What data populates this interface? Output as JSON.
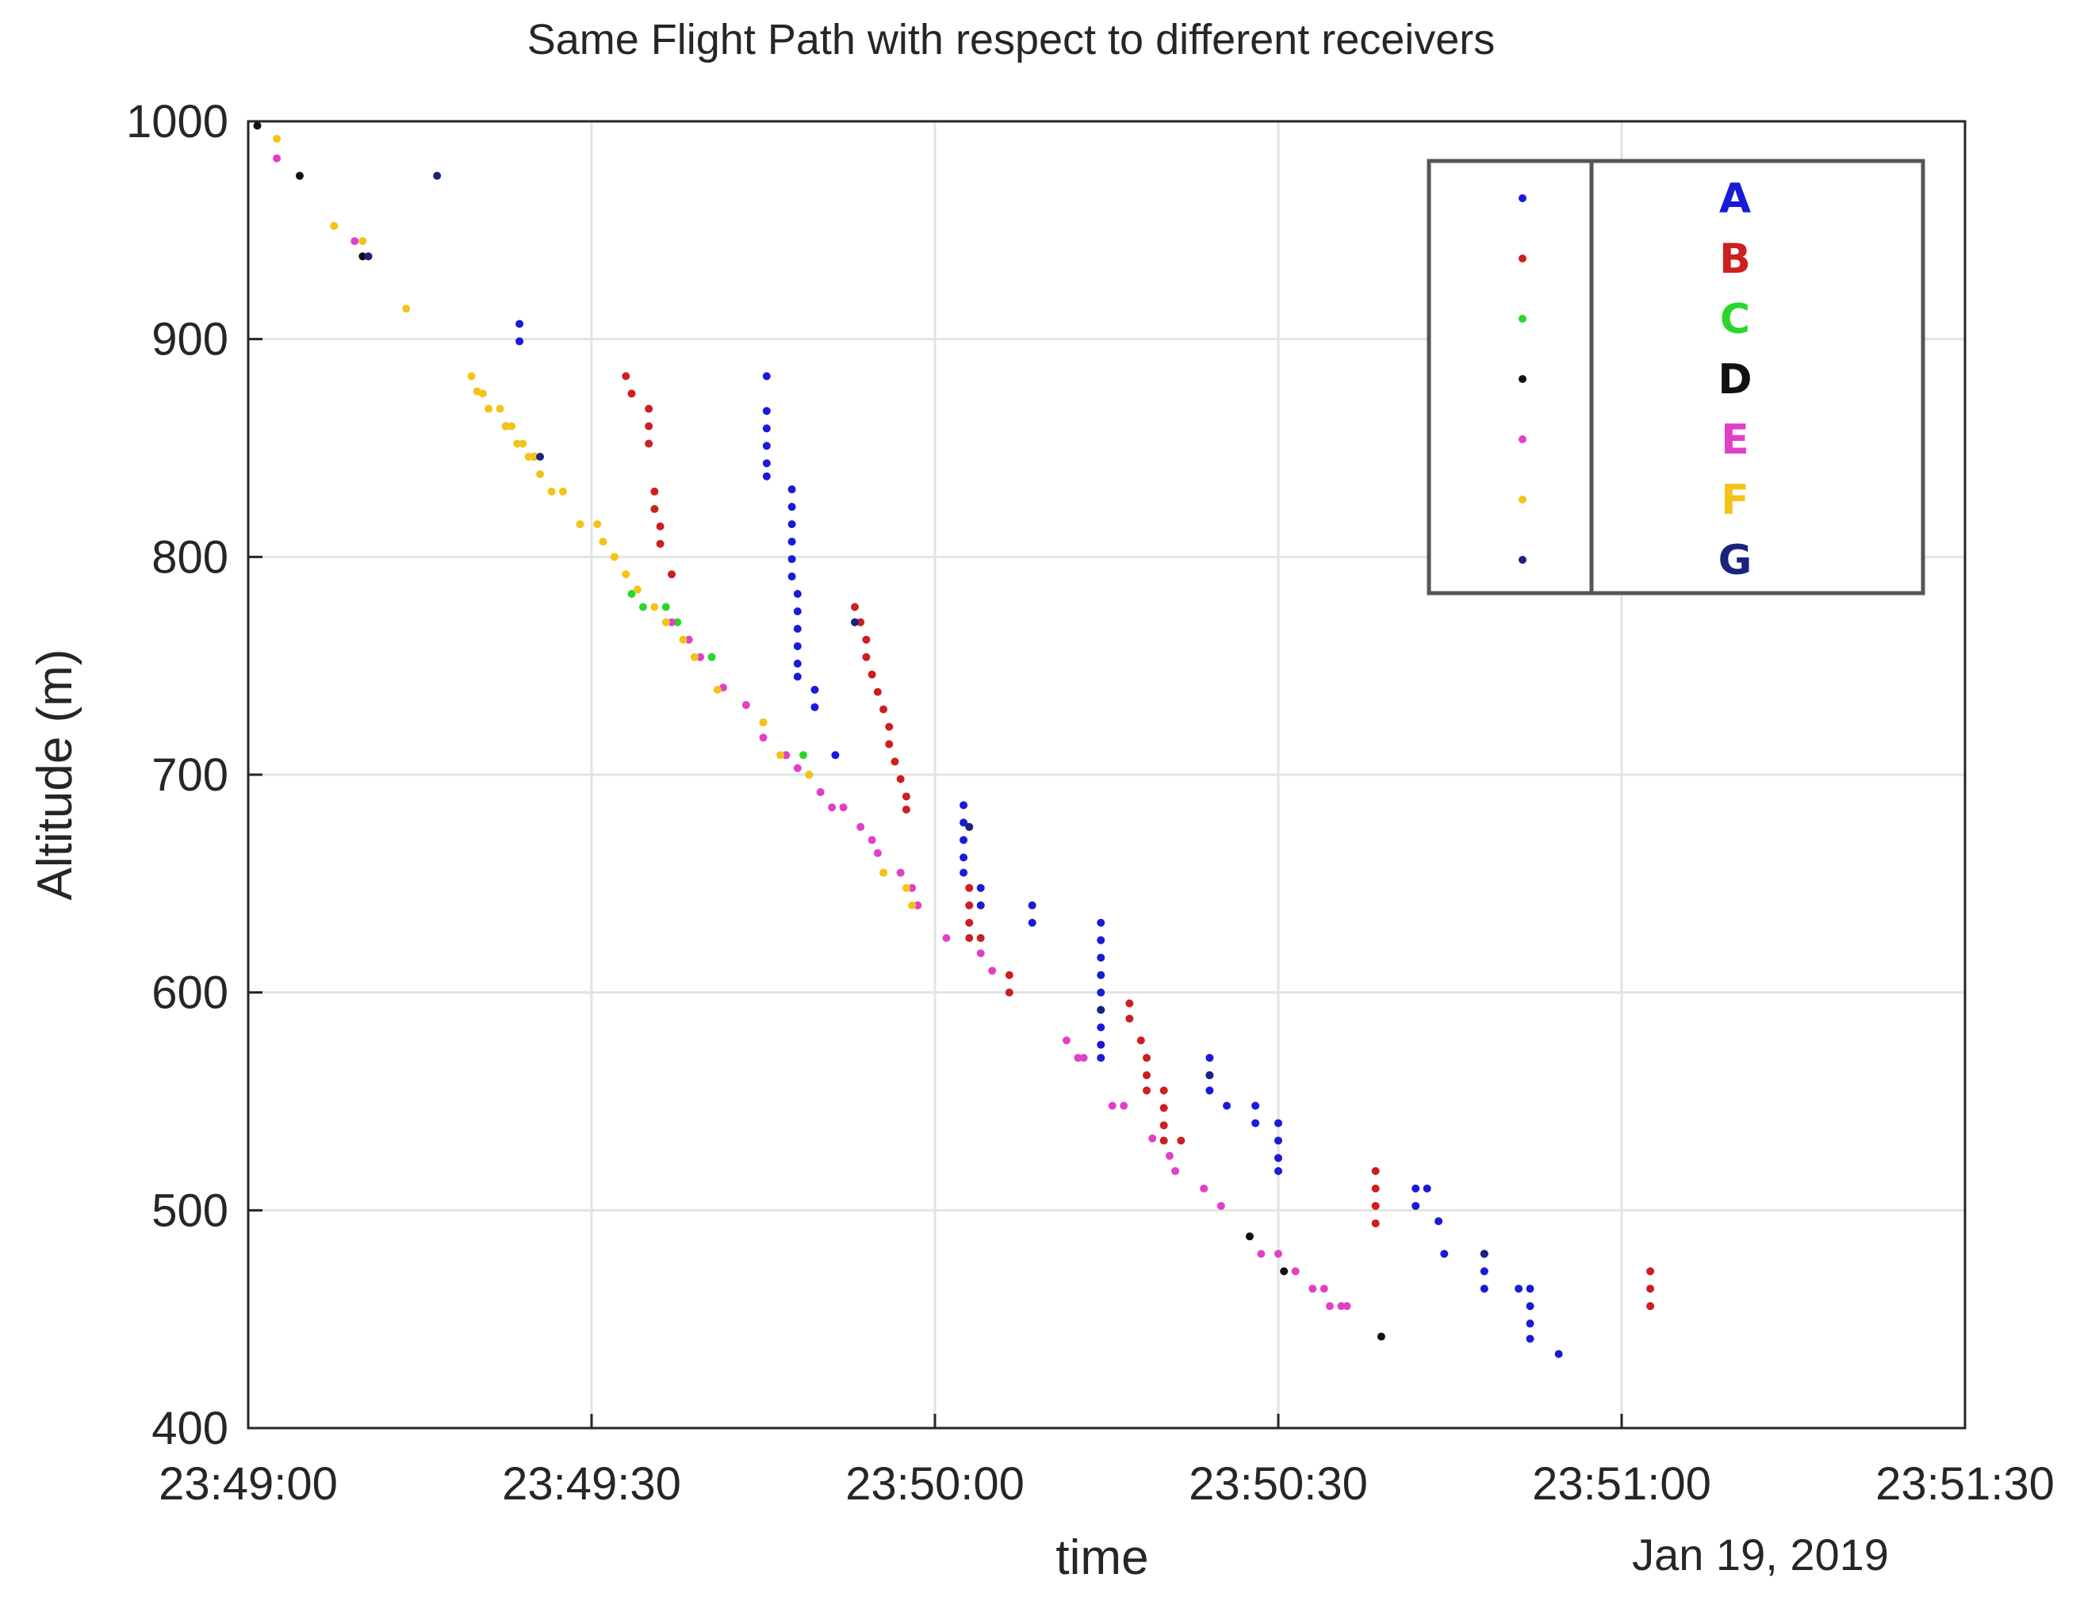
{
  "chart_data": {
    "type": "scatter",
    "title": "Same Flight Path with respect to different receivers",
    "xlabel": "time",
    "ylabel": "Altitude (m)",
    "date_label": "Jan 19, 2019",
    "x_unit": "seconds after 23:49:00",
    "xlim": [
      0,
      150
    ],
    "ylim": [
      400,
      1000
    ],
    "x_ticks": [
      0,
      30,
      60,
      90,
      120,
      150
    ],
    "x_tick_labels": [
      "23:49:00",
      "23:49:30",
      "23:50:00",
      "23:50:30",
      "23:51:00",
      "23:51:30"
    ],
    "y_ticks": [
      400,
      500,
      600,
      700,
      800,
      900,
      1000
    ],
    "y_tick_labels": [
      "400",
      "500",
      "600",
      "700",
      "800",
      "900",
      "1000"
    ],
    "grid": true,
    "legend_position": "top-right",
    "series": [
      {
        "name": "A",
        "color": "#1a1ad8",
        "points": [
          [
            23.7,
            907
          ],
          [
            23.7,
            899
          ],
          [
            45.3,
            883
          ],
          [
            45.3,
            867
          ],
          [
            45.3,
            859
          ],
          [
            45.3,
            851
          ],
          [
            45.3,
            843
          ],
          [
            45.3,
            837
          ],
          [
            47.5,
            831
          ],
          [
            47.5,
            823
          ],
          [
            47.5,
            815
          ],
          [
            47.5,
            807
          ],
          [
            47.5,
            799
          ],
          [
            47.5,
            791
          ],
          [
            48.0,
            783
          ],
          [
            48.0,
            775
          ],
          [
            48.0,
            767
          ],
          [
            48.0,
            759
          ],
          [
            48.0,
            751
          ],
          [
            48.0,
            745
          ],
          [
            49.5,
            739
          ],
          [
            49.5,
            731
          ],
          [
            51.3,
            709
          ],
          [
            62.5,
            686
          ],
          [
            62.5,
            678
          ],
          [
            62.5,
            670
          ],
          [
            62.5,
            662
          ],
          [
            62.5,
            655
          ],
          [
            64.0,
            648
          ],
          [
            64.0,
            640
          ],
          [
            68.5,
            640
          ],
          [
            68.5,
            632
          ],
          [
            74.5,
            632
          ],
          [
            74.5,
            624
          ],
          [
            74.5,
            616
          ],
          [
            74.5,
            608
          ],
          [
            74.5,
            600
          ],
          [
            74.5,
            592
          ],
          [
            74.5,
            584
          ],
          [
            74.5,
            576
          ],
          [
            74.5,
            570
          ],
          [
            84.0,
            570
          ],
          [
            84.0,
            562
          ],
          [
            84.0,
            555
          ],
          [
            85.5,
            548
          ],
          [
            88.0,
            548
          ],
          [
            88.0,
            540
          ],
          [
            90.0,
            540
          ],
          [
            90.0,
            532
          ],
          [
            90.0,
            524
          ],
          [
            90.0,
            518
          ],
          [
            102.0,
            510
          ],
          [
            102.0,
            502
          ],
          [
            103.0,
            510
          ],
          [
            104.0,
            495
          ],
          [
            104.5,
            480
          ],
          [
            108.0,
            480
          ],
          [
            108.0,
            472
          ],
          [
            108.0,
            464
          ],
          [
            111.0,
            464
          ],
          [
            112.0,
            464
          ],
          [
            112.0,
            456
          ],
          [
            112.0,
            448
          ],
          [
            112.0,
            441
          ],
          [
            114.5,
            434
          ]
        ]
      },
      {
        "name": "B",
        "color": "#cc1f1f",
        "points": [
          [
            33.0,
            883
          ],
          [
            33.5,
            875
          ],
          [
            35.0,
            868
          ],
          [
            35.0,
            860
          ],
          [
            35.0,
            852
          ],
          [
            35.5,
            830
          ],
          [
            35.5,
            822
          ],
          [
            36.0,
            814
          ],
          [
            36.0,
            806
          ],
          [
            37.0,
            792
          ],
          [
            53.0,
            777
          ],
          [
            53.5,
            770
          ],
          [
            54.0,
            762
          ],
          [
            54.0,
            754
          ],
          [
            54.5,
            746
          ],
          [
            55.0,
            738
          ],
          [
            55.5,
            730
          ],
          [
            56.0,
            722
          ],
          [
            56.0,
            714
          ],
          [
            56.5,
            706
          ],
          [
            57.0,
            698
          ],
          [
            57.5,
            690
          ],
          [
            57.5,
            684
          ],
          [
            63.0,
            648
          ],
          [
            63.0,
            640
          ],
          [
            63.0,
            632
          ],
          [
            63.0,
            625
          ],
          [
            64.0,
            625
          ],
          [
            66.5,
            608
          ],
          [
            66.5,
            600
          ],
          [
            77.0,
            595
          ],
          [
            77.0,
            588
          ],
          [
            78.0,
            578
          ],
          [
            78.5,
            570
          ],
          [
            78.5,
            562
          ],
          [
            78.5,
            555
          ],
          [
            80.0,
            555
          ],
          [
            80.0,
            547
          ],
          [
            80.0,
            539
          ],
          [
            80.0,
            532
          ],
          [
            81.5,
            532
          ],
          [
            98.5,
            518
          ],
          [
            98.5,
            510
          ],
          [
            98.5,
            502
          ],
          [
            98.5,
            494
          ],
          [
            122.5,
            472
          ],
          [
            122.5,
            464
          ],
          [
            122.5,
            456
          ]
        ]
      },
      {
        "name": "C",
        "color": "#2bd62b",
        "points": [
          [
            33.5,
            783
          ],
          [
            34.5,
            777
          ],
          [
            36.5,
            777
          ],
          [
            37.5,
            770
          ],
          [
            40.5,
            754
          ],
          [
            45.0,
            724
          ],
          [
            48.5,
            709
          ],
          [
            50.0,
            692
          ],
          [
            57.0,
            655
          ]
        ]
      },
      {
        "name": "D",
        "color": "#111111",
        "points": [
          [
            0.8,
            998
          ],
          [
            4.5,
            975
          ],
          [
            10.0,
            938
          ],
          [
            22.5,
            860
          ],
          [
            25.0,
            846
          ],
          [
            87.5,
            488
          ],
          [
            90.5,
            472
          ],
          [
            99.0,
            442
          ]
        ]
      },
      {
        "name": "E",
        "color": "#e040c8",
        "points": [
          [
            2.5,
            983
          ],
          [
            9.3,
            945
          ],
          [
            37.0,
            770
          ],
          [
            38.5,
            762
          ],
          [
            39.5,
            754
          ],
          [
            41.5,
            740
          ],
          [
            43.5,
            732
          ],
          [
            45.0,
            717
          ],
          [
            47.0,
            709
          ],
          [
            48.0,
            703
          ],
          [
            49.0,
            700
          ],
          [
            50.0,
            692
          ],
          [
            51.0,
            685
          ],
          [
            52.0,
            685
          ],
          [
            53.5,
            676
          ],
          [
            54.5,
            670
          ],
          [
            55.0,
            664
          ],
          [
            55.5,
            655
          ],
          [
            57.0,
            655
          ],
          [
            58.0,
            648
          ],
          [
            58.5,
            640
          ],
          [
            61.0,
            625
          ],
          [
            64.0,
            618
          ],
          [
            65.0,
            610
          ],
          [
            71.5,
            578
          ],
          [
            72.5,
            570
          ],
          [
            73.0,
            570
          ],
          [
            75.5,
            548
          ],
          [
            76.5,
            548
          ],
          [
            79.0,
            533
          ],
          [
            80.5,
            525
          ],
          [
            81.0,
            518
          ],
          [
            83.5,
            510
          ],
          [
            85.0,
            502
          ],
          [
            88.5,
            480
          ],
          [
            90.0,
            480
          ],
          [
            91.5,
            472
          ],
          [
            93.0,
            464
          ],
          [
            94.0,
            464
          ],
          [
            94.5,
            456
          ],
          [
            95.5,
            456
          ],
          [
            96.0,
            456
          ]
        ]
      },
      {
        "name": "F",
        "color": "#f2c418",
        "points": [
          [
            2.5,
            992
          ],
          [
            7.5,
            952
          ],
          [
            10.0,
            945
          ],
          [
            13.8,
            914
          ],
          [
            19.5,
            883
          ],
          [
            20.0,
            876
          ],
          [
            20.5,
            875
          ],
          [
            21.0,
            868
          ],
          [
            22.0,
            868
          ],
          [
            22.5,
            860
          ],
          [
            23.0,
            860
          ],
          [
            23.5,
            852
          ],
          [
            24.0,
            852
          ],
          [
            24.5,
            846
          ],
          [
            25.0,
            846
          ],
          [
            25.5,
            838
          ],
          [
            26.5,
            830
          ],
          [
            27.5,
            830
          ],
          [
            29.0,
            815
          ],
          [
            30.5,
            815
          ],
          [
            31.0,
            807
          ],
          [
            32.0,
            800
          ],
          [
            33.0,
            792
          ],
          [
            34.0,
            785
          ],
          [
            35.5,
            777
          ],
          [
            36.5,
            770
          ],
          [
            38.0,
            762
          ],
          [
            39.0,
            754
          ],
          [
            41.0,
            739
          ],
          [
            45.0,
            724
          ],
          [
            46.5,
            709
          ],
          [
            49.0,
            700
          ],
          [
            55.5,
            655
          ],
          [
            57.5,
            648
          ],
          [
            58.0,
            640
          ]
        ]
      },
      {
        "name": "G",
        "color": "#1a237e",
        "points": [
          [
            10.5,
            938
          ],
          [
            16.5,
            975
          ],
          [
            25.5,
            846
          ],
          [
            53.0,
            770
          ],
          [
            63.0,
            676
          ],
          [
            74.5,
            592
          ],
          [
            84.0,
            562
          ],
          [
            108.0,
            480
          ]
        ]
      }
    ]
  }
}
